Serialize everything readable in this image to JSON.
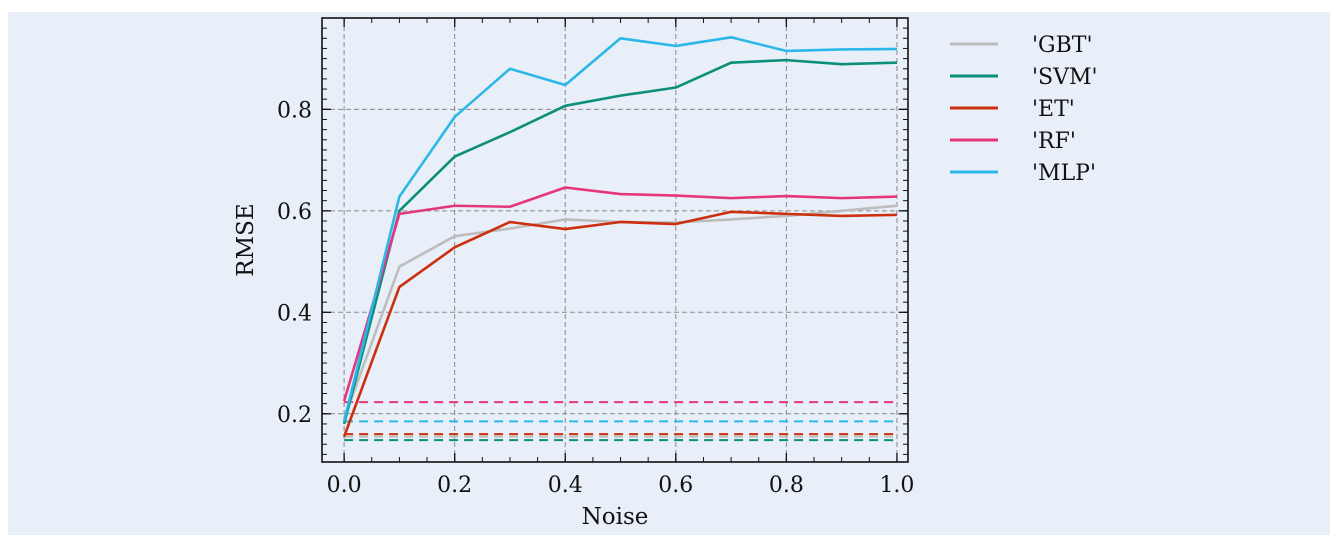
{
  "chart_data": {
    "type": "line",
    "xlabel": "Noise",
    "ylabel": "RMSE",
    "xlim": [
      -0.04,
      1.02
    ],
    "ylim": [
      0.105,
      0.98
    ],
    "xticks": [
      0.0,
      0.2,
      0.4,
      0.6,
      0.8,
      1.0
    ],
    "xtick_labels": [
      "0.0",
      "0.2",
      "0.4",
      "0.6",
      "0.8",
      "1.0"
    ],
    "yticks": [
      0.2,
      0.4,
      0.6,
      0.8
    ],
    "ytick_labels": [
      "0.2",
      "0.4",
      "0.6",
      "0.8"
    ],
    "grid": true,
    "legend_position": "outside-right",
    "x": [
      0.0,
      0.1,
      0.2,
      0.3,
      0.4,
      0.5,
      0.6,
      0.7,
      0.8,
      0.9,
      1.0
    ],
    "series": [
      {
        "name": "'GBT'",
        "color": "#bdbdbd",
        "values": [
          0.19,
          0.49,
          0.55,
          0.565,
          0.583,
          0.578,
          0.577,
          0.583,
          0.59,
          0.6,
          0.61
        ],
        "baseline": 0.155
      },
      {
        "name": "'SVM'",
        "color": "#0c8f7a",
        "values": [
          0.18,
          0.6,
          0.707,
          0.755,
          0.807,
          0.827,
          0.843,
          0.892,
          0.897,
          0.889,
          0.892
        ],
        "baseline": 0.148
      },
      {
        "name": "'ET'",
        "color": "#cc2f0e",
        "values": [
          0.155,
          0.45,
          0.528,
          0.578,
          0.564,
          0.578,
          0.574,
          0.598,
          0.594,
          0.59,
          0.592
        ],
        "baseline": 0.16
      },
      {
        "name": "'RF'",
        "color": "#e5367a",
        "values": [
          0.225,
          0.594,
          0.61,
          0.608,
          0.646,
          0.633,
          0.63,
          0.625,
          0.629,
          0.625,
          0.628
        ],
        "baseline": 0.223
      },
      {
        "name": "'MLP'",
        "color": "#2bb8e8",
        "values": [
          0.185,
          0.628,
          0.785,
          0.88,
          0.848,
          0.94,
          0.925,
          0.942,
          0.915,
          0.918,
          0.919
        ],
        "baseline": 0.185
      }
    ]
  }
}
